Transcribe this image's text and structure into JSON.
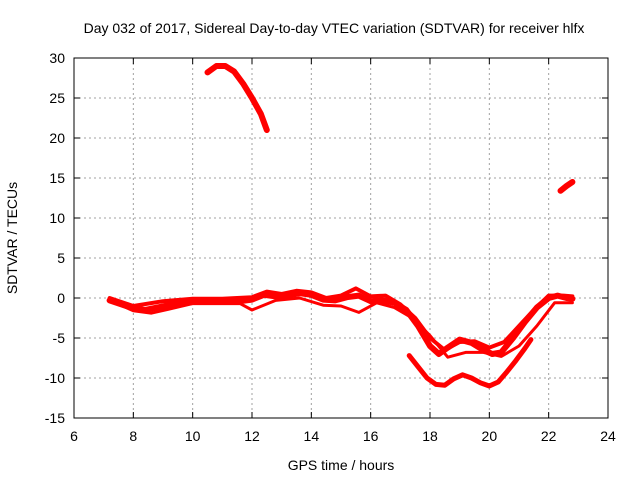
{
  "chart_data": {
    "type": "line",
    "title": "Day 032 of 2017, Sidereal Day-to-day VTEC variation (SDTVAR) for receiver hlfx",
    "xlabel": "GPS time / hours",
    "ylabel": "SDTVAR / TECUs",
    "xlim": [
      6,
      24
    ],
    "ylim": [
      -15,
      30
    ],
    "xticks": [
      "6",
      "8",
      "10",
      "12",
      "14",
      "16",
      "18",
      "20",
      "22",
      "24"
    ],
    "yticks": [
      "-15",
      "-10",
      "-5",
      "0",
      "5",
      "10",
      "15",
      "20",
      "25",
      "30"
    ],
    "grid": true,
    "legend": "none",
    "color": "#ff0000",
    "series": [
      {
        "name": "main",
        "x": [
          7.2,
          7.6,
          8.0,
          8.4,
          8.8,
          9.2,
          9.6,
          10.0,
          10.4,
          10.8,
          11.2,
          11.6,
          12.0,
          12.4,
          12.8,
          13.2,
          13.6,
          14.0,
          14.4,
          14.8,
          15.2,
          15.6,
          16.0,
          16.4,
          16.8,
          17.2,
          17.6,
          18.0,
          18.3,
          18.6,
          19.0,
          19.4,
          19.8,
          20.1,
          20.4,
          20.8,
          21.2,
          21.6,
          22.0,
          22.3,
          22.6,
          22.8
        ],
        "y": [
          -0.3,
          -0.8,
          -1.3,
          -1.5,
          -1.2,
          -0.9,
          -0.7,
          -0.5,
          -0.4,
          -0.4,
          -0.3,
          -0.4,
          -0.2,
          0.4,
          0.2,
          0.3,
          0.6,
          0.4,
          -0.2,
          -0.3,
          0.1,
          0.3,
          -0.4,
          -0.3,
          -0.6,
          -1.5,
          -3.5,
          -6.0,
          -7.0,
          -6.2,
          -5.2,
          -5.6,
          -6.5,
          -7.0,
          -6.8,
          -5.0,
          -3.0,
          -1.2,
          0.0,
          0.3,
          0.0,
          -0.1
        ],
        "width": 6
      },
      {
        "name": "main-upper",
        "x": [
          7.2,
          8.0,
          9.0,
          10.0,
          11.0,
          12.0,
          12.5,
          13.0,
          13.5,
          14.0,
          14.5,
          15.0,
          15.5,
          16.0,
          16.5,
          17.0,
          17.5,
          18.0,
          18.5,
          19.0,
          19.5,
          20.0,
          20.5,
          21.0,
          21.5,
          22.0,
          22.5,
          22.8
        ],
        "y": [
          0.0,
          -1.0,
          -0.4,
          -0.1,
          -0.1,
          0.1,
          0.8,
          0.5,
          0.9,
          0.7,
          0.0,
          0.3,
          1.2,
          0.2,
          0.3,
          -0.8,
          -2.5,
          -5.0,
          -6.5,
          -5.5,
          -5.4,
          -6.2,
          -5.5,
          -3.5,
          -1.5,
          0.3,
          0.3,
          0.2
        ],
        "width": 4
      },
      {
        "name": "main-lower",
        "x": [
          7.4,
          8.0,
          8.6,
          9.2,
          10.0,
          10.8,
          11.6,
          12.0,
          12.8,
          13.6,
          14.4,
          15.0,
          15.6,
          16.2,
          16.8,
          17.4,
          18.0,
          18.6,
          19.2,
          19.8,
          20.4,
          21.0,
          21.6,
          22.2,
          22.8
        ],
        "y": [
          -0.6,
          -1.6,
          -1.9,
          -1.4,
          -0.7,
          -0.7,
          -0.7,
          -1.5,
          -0.3,
          0.0,
          -0.9,
          -1.0,
          -1.8,
          -0.6,
          -1.2,
          -2.5,
          -4.7,
          -7.4,
          -6.8,
          -6.8,
          -7.3,
          -6.0,
          -3.5,
          -0.6,
          -0.6
        ],
        "width": 3
      },
      {
        "name": "lower-arc",
        "x": [
          17.3,
          17.6,
          17.9,
          18.2,
          18.5,
          18.8,
          19.1,
          19.4,
          19.7,
          20.0,
          20.3,
          20.6,
          20.9,
          21.2,
          21.4
        ],
        "y": [
          -7.2,
          -8.6,
          -10.0,
          -10.8,
          -10.9,
          -10.1,
          -9.6,
          -10.0,
          -10.6,
          -11.0,
          -10.5,
          -9.2,
          -7.8,
          -6.3,
          -5.2
        ],
        "width": 5
      },
      {
        "name": "high-arc",
        "x": [
          10.5,
          10.8,
          11.1,
          11.4,
          11.7,
          12.0,
          12.3,
          12.5
        ],
        "y": [
          28.2,
          29.0,
          29.0,
          28.3,
          26.8,
          25.0,
          23.0,
          21.0
        ],
        "width": 6
      },
      {
        "name": "right-segment",
        "x": [
          22.4,
          22.6,
          22.8
        ],
        "y": [
          13.4,
          14.0,
          14.5
        ],
        "width": 6
      }
    ]
  }
}
